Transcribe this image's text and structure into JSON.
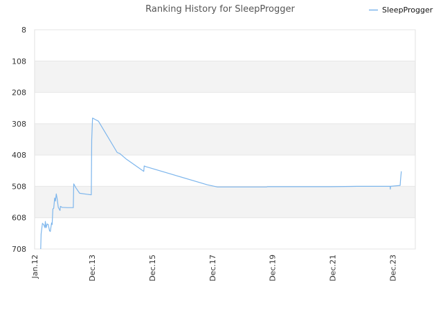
{
  "chart_data": {
    "type": "line",
    "title": "Ranking History for SleepProgger",
    "xlabel": "",
    "ylabel": "",
    "y_inverted": true,
    "ylim": [
      8,
      708
    ],
    "yticks": [
      8,
      108,
      208,
      308,
      408,
      508,
      608,
      708
    ],
    "xlim": [
      "2012-01-01",
      "2024-09-01"
    ],
    "xticks": [
      {
        "label": "Jan.12",
        "date": "2012-01-01"
      },
      {
        "label": "Dec.13",
        "date": "2013-12-01"
      },
      {
        "label": "Dec.15",
        "date": "2015-12-01"
      },
      {
        "label": "Dec.17",
        "date": "2017-12-01"
      },
      {
        "label": "Dec.19",
        "date": "2019-12-01"
      },
      {
        "label": "Dec.21",
        "date": "2021-12-01"
      },
      {
        "label": "Dec.23",
        "date": "2023-12-01"
      }
    ],
    "grid": "alternating-bands",
    "legend_position": "top-right",
    "line_color": "#7cb5ec",
    "band_color": "#f3f3f3",
    "series": [
      {
        "name": "SleepProgger",
        "points": [
          [
            "2012-03-15",
            708
          ],
          [
            "2012-03-20",
            660
          ],
          [
            "2012-04-05",
            626
          ],
          [
            "2012-04-20",
            630
          ],
          [
            "2012-05-05",
            640
          ],
          [
            "2012-05-10",
            620
          ],
          [
            "2012-05-20",
            640
          ],
          [
            "2012-06-01",
            628
          ],
          [
            "2012-06-15",
            630
          ],
          [
            "2012-07-01",
            650
          ],
          [
            "2012-07-10",
            652
          ],
          [
            "2012-07-25",
            625
          ],
          [
            "2012-08-01",
            630
          ],
          [
            "2012-08-10",
            580
          ],
          [
            "2012-08-20",
            578
          ],
          [
            "2012-09-01",
            545
          ],
          [
            "2012-09-10",
            555
          ],
          [
            "2012-09-20",
            532
          ],
          [
            "2012-10-01",
            548
          ],
          [
            "2012-10-15",
            575
          ],
          [
            "2012-10-25",
            580
          ],
          [
            "2012-11-05",
            585
          ],
          [
            "2012-11-10",
            572
          ],
          [
            "2012-12-01",
            575
          ],
          [
            "2013-02-01",
            576
          ],
          [
            "2013-04-15",
            576
          ],
          [
            "2013-04-20",
            500
          ],
          [
            "2013-05-15",
            512
          ],
          [
            "2013-07-01",
            530
          ],
          [
            "2013-11-20",
            535
          ],
          [
            "2013-11-25",
            360
          ],
          [
            "2013-12-05",
            290
          ],
          [
            "2014-01-10",
            295
          ],
          [
            "2014-02-15",
            300
          ],
          [
            "2014-10-01",
            400
          ],
          [
            "2014-11-01",
            403
          ],
          [
            "2015-01-15",
            420
          ],
          [
            "2015-08-20",
            460
          ],
          [
            "2015-08-25",
            443
          ],
          [
            "2015-09-15",
            445
          ],
          [
            "2017-10-01",
            503
          ],
          [
            "2018-02-01",
            510
          ],
          [
            "2019-09-20",
            510
          ],
          [
            "2019-10-01",
            509
          ],
          [
            "2021-11-01",
            509
          ],
          [
            "2022-09-20",
            508
          ],
          [
            "2023-10-31",
            508
          ],
          [
            "2023-11-02",
            517
          ],
          [
            "2023-11-05",
            508
          ],
          [
            "2024-03-01",
            505
          ],
          [
            "2024-03-05",
            488
          ],
          [
            "2024-03-15",
            460
          ]
        ]
      }
    ]
  }
}
